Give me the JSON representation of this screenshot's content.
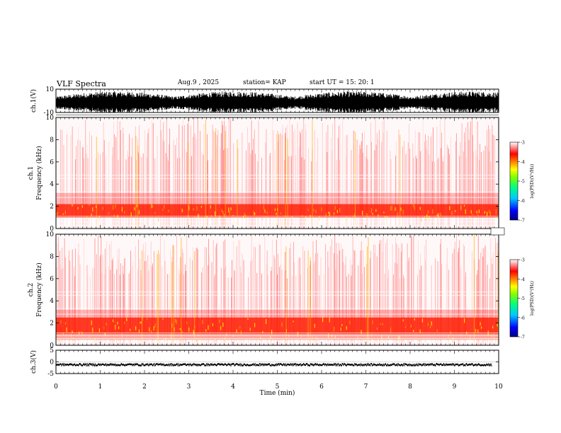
{
  "header": {
    "title": "VLF Spectra",
    "date": "Aug.9 , 2025",
    "station": "station= KAP",
    "start": "start UT = 15: 20: 1"
  },
  "chart_data": [
    {
      "type": "line",
      "name": "ch.1 waveform",
      "ylabel": "ch.1(V)",
      "ylim": [
        -10,
        10
      ],
      "yticks": [
        "10",
        "-10"
      ],
      "xlim": [
        0,
        10
      ],
      "description_values": "dense oscillating signal spanning most of the -10..10 V range"
    },
    {
      "type": "heatmap",
      "name": "ch.1 spectrogram",
      "ylabel_top": "ch.1",
      "ylabel": "Frequency (kHz)",
      "ylim": [
        0,
        10
      ],
      "yticks": [
        "0",
        "2",
        "4",
        "6",
        "8",
        "10"
      ],
      "xlim": [
        0,
        10
      ],
      "strong_band_khz": [
        1.0,
        2.2
      ],
      "colorbar": {
        "label": "log(PSD)(V²/Hz)",
        "range": [
          -7,
          -3
        ],
        "ticks": [
          "-3",
          "-4",
          "-5",
          "-6",
          "-7"
        ]
      }
    },
    {
      "type": "heatmap",
      "name": "ch.2 spectrogram",
      "ylabel_top": "ch.2",
      "ylabel": "Frequency (kHz)",
      "ylim": [
        0,
        10
      ],
      "yticks": [
        "0",
        "2",
        "4",
        "6",
        "8",
        "10"
      ],
      "xlim": [
        0,
        10
      ],
      "strong_band_khz": [
        0.5,
        2.5
      ],
      "colorbar": {
        "label": "log(PSD)(V²/Hz)",
        "range": [
          -7,
          -3
        ],
        "ticks": [
          "-3",
          "-4",
          "-5",
          "-6",
          "-7"
        ]
      }
    },
    {
      "type": "line",
      "name": "ch.3 waveform",
      "ylabel": "ch.3(V)",
      "ylim": [
        -5,
        5
      ],
      "yticks": [
        "5",
        "0",
        "-5"
      ],
      "xlim": [
        0,
        10
      ],
      "level": -1.2
    }
  ],
  "xaxis": {
    "label": "Time (min)",
    "range": [
      0,
      10
    ],
    "ticks": [
      "0",
      "1",
      "2",
      "3",
      "4",
      "5",
      "6",
      "7",
      "8",
      "9",
      "10"
    ]
  }
}
